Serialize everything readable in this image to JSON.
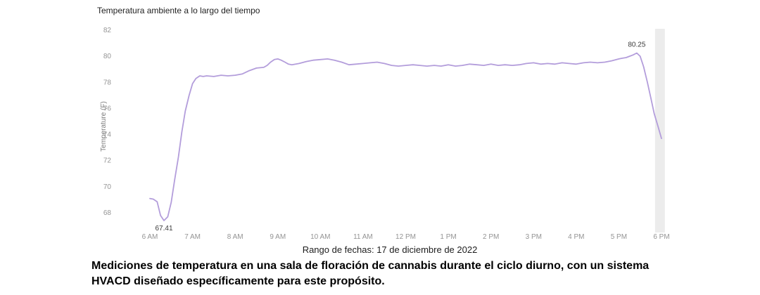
{
  "chart": {
    "title": "Temperatura ambiente a lo largo del tiempo",
    "y_axis_label": "Temperature (F)",
    "date_range_label": "Rango de fechas: 17 de diciembre de 2022"
  },
  "caption": "Mediciones de temperatura en una sala de floración de cannabis durante el ciclo diurno, con un sistema HVACD diseñado específicamente para este propósito.",
  "chart_data": {
    "type": "line",
    "title": "Temperatura ambiente a lo largo del tiempo",
    "xlabel": "",
    "ylabel": "Temperature (F)",
    "x_ticks": [
      "6 AM",
      "7 AM",
      "8 AM",
      "9 AM",
      "10 AM",
      "11 AM",
      "12 PM",
      "1 PM",
      "2 PM",
      "3 PM",
      "4 PM",
      "5 PM",
      "6 PM"
    ],
    "y_ticks": [
      68,
      70,
      72,
      74,
      76,
      78,
      80,
      82
    ],
    "ylim": [
      66.5,
      82
    ],
    "xlim_hours": [
      6,
      18
    ],
    "grid": "off",
    "legend": "none",
    "line_color": "#b39ddb",
    "series": [
      {
        "name": "Temperatura ambiente",
        "points": [
          [
            6.0,
            69.1
          ],
          [
            6.08,
            69.05
          ],
          [
            6.17,
            68.85
          ],
          [
            6.25,
            67.8
          ],
          [
            6.33,
            67.41
          ],
          [
            6.42,
            67.7
          ],
          [
            6.5,
            68.8
          ],
          [
            6.58,
            70.5
          ],
          [
            6.67,
            72.3
          ],
          [
            6.75,
            74.2
          ],
          [
            6.83,
            75.8
          ],
          [
            6.92,
            77.0
          ],
          [
            7.0,
            77.9
          ],
          [
            7.08,
            78.3
          ],
          [
            7.17,
            78.5
          ],
          [
            7.25,
            78.45
          ],
          [
            7.33,
            78.5
          ],
          [
            7.5,
            78.45
          ],
          [
            7.67,
            78.55
          ],
          [
            7.83,
            78.5
          ],
          [
            8.0,
            78.55
          ],
          [
            8.17,
            78.65
          ],
          [
            8.33,
            78.9
          ],
          [
            8.5,
            79.1
          ],
          [
            8.67,
            79.15
          ],
          [
            8.75,
            79.3
          ],
          [
            8.83,
            79.55
          ],
          [
            8.92,
            79.75
          ],
          [
            9.0,
            79.8
          ],
          [
            9.08,
            79.7
          ],
          [
            9.17,
            79.55
          ],
          [
            9.25,
            79.4
          ],
          [
            9.33,
            79.35
          ],
          [
            9.5,
            79.45
          ],
          [
            9.67,
            79.6
          ],
          [
            9.83,
            79.7
          ],
          [
            10.0,
            79.75
          ],
          [
            10.17,
            79.8
          ],
          [
            10.33,
            79.7
          ],
          [
            10.5,
            79.55
          ],
          [
            10.67,
            79.35
          ],
          [
            10.83,
            79.4
          ],
          [
            11.0,
            79.45
          ],
          [
            11.17,
            79.5
          ],
          [
            11.33,
            79.55
          ],
          [
            11.5,
            79.45
          ],
          [
            11.67,
            79.3
          ],
          [
            11.83,
            79.25
          ],
          [
            12.0,
            79.3
          ],
          [
            12.17,
            79.35
          ],
          [
            12.33,
            79.3
          ],
          [
            12.5,
            79.25
          ],
          [
            12.67,
            79.3
          ],
          [
            12.83,
            79.25
          ],
          [
            13.0,
            79.35
          ],
          [
            13.17,
            79.25
          ],
          [
            13.33,
            79.3
          ],
          [
            13.5,
            79.4
          ],
          [
            13.67,
            79.35
          ],
          [
            13.83,
            79.3
          ],
          [
            14.0,
            79.4
          ],
          [
            14.17,
            79.3
          ],
          [
            14.33,
            79.35
          ],
          [
            14.5,
            79.3
          ],
          [
            14.67,
            79.35
          ],
          [
            14.83,
            79.45
          ],
          [
            15.0,
            79.5
          ],
          [
            15.17,
            79.4
          ],
          [
            15.33,
            79.45
          ],
          [
            15.5,
            79.4
          ],
          [
            15.67,
            79.5
          ],
          [
            15.83,
            79.45
          ],
          [
            16.0,
            79.4
          ],
          [
            16.17,
            79.5
          ],
          [
            16.33,
            79.55
          ],
          [
            16.5,
            79.5
          ],
          [
            16.67,
            79.55
          ],
          [
            16.83,
            79.65
          ],
          [
            17.0,
            79.8
          ],
          [
            17.08,
            79.85
          ],
          [
            17.17,
            79.9
          ],
          [
            17.25,
            80.0
          ],
          [
            17.33,
            80.1
          ],
          [
            17.42,
            80.25
          ],
          [
            17.5,
            80.0
          ],
          [
            17.58,
            79.2
          ],
          [
            17.67,
            78.0
          ],
          [
            17.75,
            76.8
          ],
          [
            17.83,
            75.6
          ],
          [
            17.92,
            74.6
          ],
          [
            18.0,
            73.7
          ]
        ]
      }
    ],
    "annotations": [
      {
        "label": "67.41",
        "x": 6.33,
        "y": 67.41,
        "position": "below"
      },
      {
        "label": "80.25",
        "x": 17.42,
        "y": 80.25,
        "position": "above"
      }
    ],
    "highlight_band": {
      "x_start": 17.85,
      "x_end": 18.08,
      "color": "#ececec"
    }
  }
}
